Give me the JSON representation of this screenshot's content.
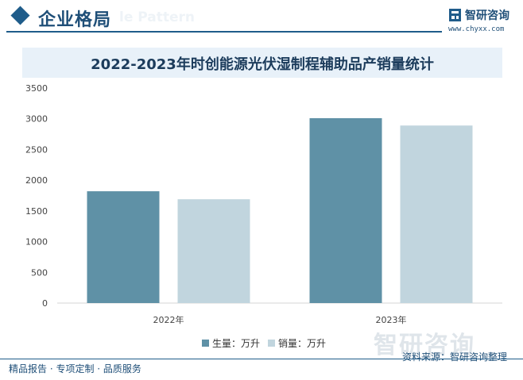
{
  "header": {
    "title": "企业格局",
    "ghost_text": "le Pattern"
  },
  "brand": {
    "name": "智研咨询",
    "url": "www.chyxx.com",
    "watermark": "智研咨询"
  },
  "colors": {
    "primary": "#1f5c8a",
    "series_production": "#5f91a6",
    "series_sales": "#c1d5de"
  },
  "chart_data": {
    "type": "bar",
    "title": "2022-2023年时创能源光伏湿制程辅助品产销量统计",
    "categories": [
      "2022年",
      "2023年"
    ],
    "series": [
      {
        "name": "生量：万升",
        "values": [
          1820,
          3010
        ]
      },
      {
        "name": "销量：万升",
        "values": [
          1690,
          2890
        ]
      }
    ],
    "ylim": [
      0,
      3500
    ],
    "yticks": [
      "0",
      "500",
      "1000",
      "1500",
      "2000",
      "2500",
      "3000",
      "3500"
    ],
    "legend_position": "bottom",
    "grid": false
  },
  "footer": {
    "left": "精品报告 · 专项定制 · 品质服务",
    "source": "资料来源：智研咨询整理"
  }
}
